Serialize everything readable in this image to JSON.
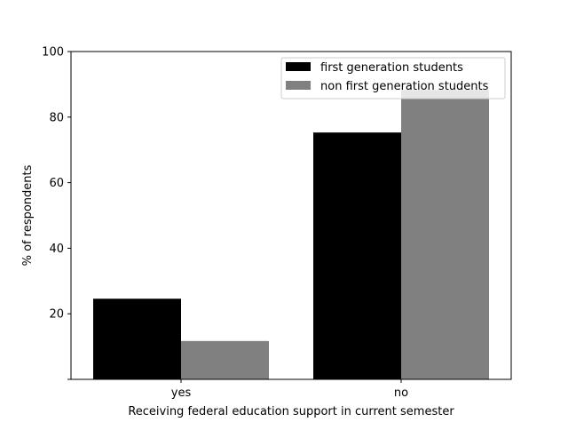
{
  "chart_data": {
    "type": "bar",
    "categories": [
      "yes",
      "no"
    ],
    "series": [
      {
        "name": "first generation students",
        "values": [
          24.6,
          75.3
        ],
        "color": "#000000"
      },
      {
        "name": "non first generation students",
        "values": [
          11.7,
          88.3
        ],
        "color": "#808080"
      }
    ],
    "xlabel": "Receiving federal education support in current semester",
    "ylabel": "% of respondents",
    "ylim": [
      0,
      100
    ],
    "yticks": [
      20,
      40,
      60,
      80,
      100
    ],
    "grid": false,
    "legend_position": "top-right"
  }
}
